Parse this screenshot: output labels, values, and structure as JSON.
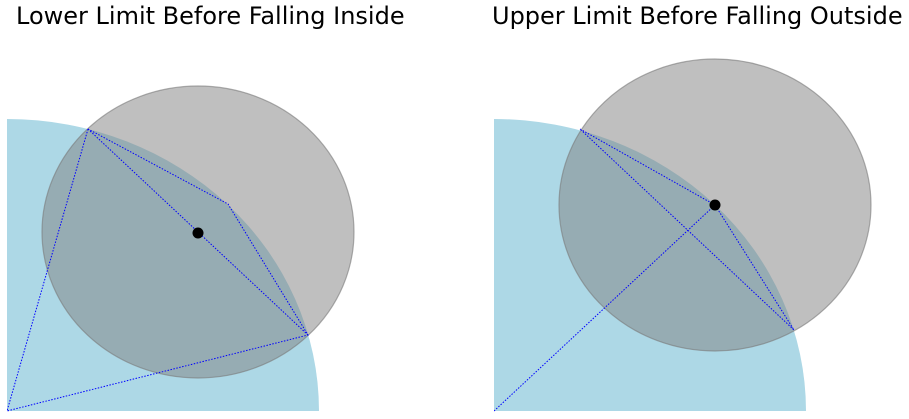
{
  "panels": [
    {
      "title": "Lower Limit Before Falling Inside",
      "colors": {
        "quarter_disk": "#add8e6",
        "circle_fill": "#808080",
        "circle_stroke": "#7a7a7a",
        "center_point": "#000000",
        "construction_lines": "#0000ff"
      }
    },
    {
      "title": "Upper Limit Before Falling Outside",
      "colors": {
        "quarter_disk": "#add8e6",
        "circle_fill": "#808080",
        "circle_stroke": "#7a7a7a",
        "center_point": "#000000",
        "construction_lines": "#0000ff"
      }
    }
  ]
}
